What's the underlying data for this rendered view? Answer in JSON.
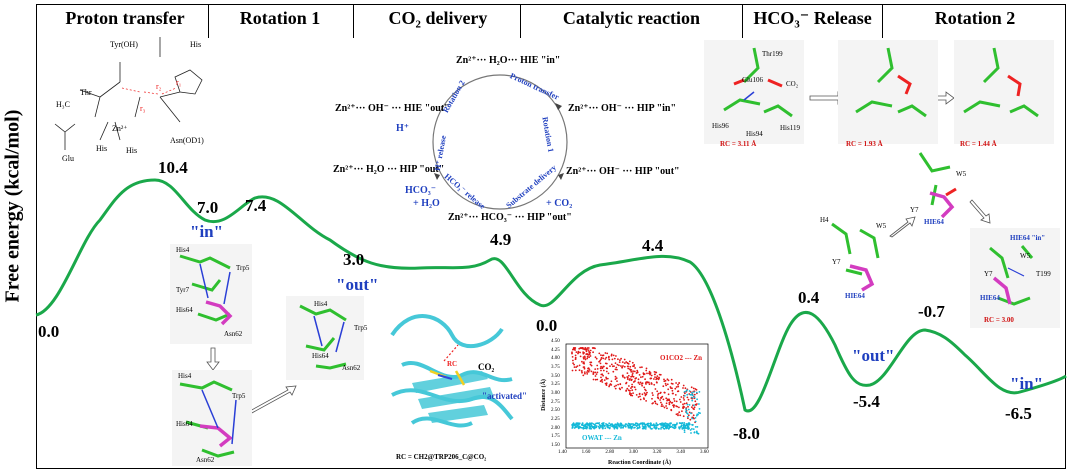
{
  "stages": [
    "Proton transfer",
    "Rotation 1",
    "CO₂ delivery",
    "Catalytic reaction",
    "HCO₃⁻ Release",
    "Rotation 2"
  ],
  "y_axis_label": "Free energy (kcal/mol)",
  "energies": [
    "0.0",
    "10.4",
    "7.0",
    "7.4",
    "3.0",
    "4.9",
    "0.0",
    "4.4",
    "-8.0",
    "0.4",
    "-5.4",
    "-0.7",
    "-6.5"
  ],
  "state_labels": [
    "\"in\"",
    "\"out\"",
    "\"out\"",
    "\"in\""
  ],
  "cycle": {
    "nodes": [
      "Zn²⁺··· H₂O··· HIE \"in\"",
      "Zn²⁺··· OH⁻ ··· HIP \"in\"",
      "Zn²⁺··· OH⁻ ··· HIP \"out\"",
      "Zn²⁺··· HCO₃⁻ ··· HIP \"out\"",
      "Zn²⁺··· H₂O ··· HIP \"out\"",
      "Zn²⁺··· OH⁻ ··· HIE \"out\""
    ],
    "arcs": [
      "Proton transfer",
      "Rotation 1",
      "Substrate delivery",
      "HCO₃⁻ release",
      "H⁺ release",
      "Rotation 2"
    ],
    "side": [
      "+ CO₂",
      "+ H₂O",
      "HCO₃⁻",
      "H⁺"
    ]
  },
  "scheme_labels": [
    "Tyr(OH)",
    "His",
    "Thr",
    "H₃C",
    "Asn(OD1)",
    "Glu",
    "Zn²⁺",
    "His",
    "His",
    "r₁",
    "r₂",
    "r₃"
  ],
  "residue_labels": {
    "left": [
      "His4",
      "Trp5",
      "Tyr7",
      "His64",
      "Asn62",
      "His4",
      "Trp5",
      "His64",
      "Asn62",
      "His4",
      "Trp5",
      "His64",
      "Asn62"
    ],
    "right": [
      "H4",
      "W5",
      "Y7",
      "HIE64",
      "W5",
      "Y7",
      "HIE64",
      "HIE64 \"in\"",
      "W5",
      "Y7",
      "T199",
      "HIE64"
    ]
  },
  "top_panels": {
    "residues": [
      "Thr199",
      "Glu106",
      "His96",
      "His94",
      "His119",
      "CO₂"
    ],
    "rc": [
      "RC = 3.11 Å",
      "RC = 1.93 Å",
      "RC = 1.44 Å"
    ]
  },
  "protein": {
    "labels": [
      "RC",
      "CO₂",
      "\"activated\""
    ],
    "caption": "RC = CH2@TRP206_C@CO₂"
  },
  "scatter": {
    "ylabel": "Distance (Å)",
    "xlabel": "Reaction Coordinate (Å)",
    "series_labels": [
      "O1CO2 --- Zn",
      "OWAT --- Zn"
    ],
    "y_ticks": [
      "4.50",
      "4.25",
      "4.00",
      "3.75",
      "3.50",
      "3.25",
      "3.00",
      "2.75",
      "2.50",
      "2.25",
      "2.00",
      "1.75",
      "1.50"
    ],
    "x_ticks": [
      "1.40",
      "1.60",
      "2.80",
      "3.00",
      "3.20",
      "3.40",
      "3.60"
    ]
  },
  "rc_small": "RC = 3.00",
  "colors": {
    "curve": "#1aa84a",
    "state_blue": "#1f3fbf",
    "scatter_red": "#e01818",
    "scatter_cyan": "#12b8d8",
    "protein": "#46c8d8"
  }
}
